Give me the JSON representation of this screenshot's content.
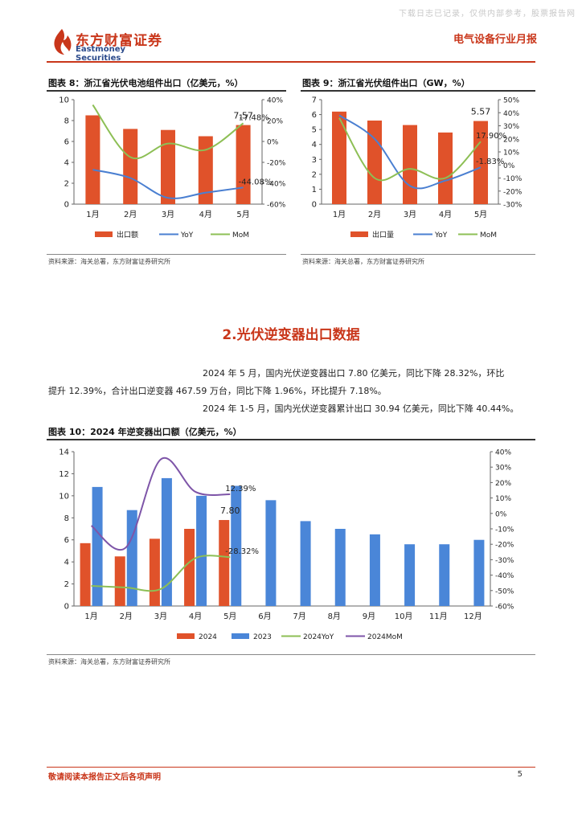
{
  "watermark": "下载日志已记录，仅供内部参考，股票报告网",
  "header": {
    "brand_cn": "东方财富证券",
    "brand_en": "Eastmoney Securities",
    "report_type": "电气设备行业月报"
  },
  "section": {
    "title": "2.光伏逆变器出口数据",
    "paragraphs": [
      "2024 年 5 月，国内光伏逆变器出口 7.80 亿美元，同比下降 28.32%，环比",
      "提升 12.39%，合计出口逆变器 467.59 万台，同比下降 1.96%，环比提升 7.18%。",
      "2024 年 1-5 月，国内光伏逆变器累计出口 30.94 亿美元，同比下降 40.44%。"
    ]
  },
  "figures": [
    {
      "title": "图表 8：浙江省光伏电池组件出口（亿美元，%）",
      "source": "资料来源：海关总署，东方财富证券研究所"
    },
    {
      "title": "图表 9：浙江省光伏组件出口（GW，%）",
      "source": "资料来源：海关总署，东方财富证券研究所"
    },
    {
      "title": "图表 10：2024 年逆变器出口额（亿美元，%）",
      "source": "资料来源：海关总署，东方财富证券研究所"
    }
  ],
  "chart_data": [
    {
      "type": "bar",
      "categories": [
        "1月",
        "2月",
        "3月",
        "4月",
        "5月"
      ],
      "ylim": [
        0,
        10
      ],
      "y_ticks": [
        "0",
        "2",
        "4",
        "6",
        "8",
        "10"
      ],
      "y2lim": [
        -60,
        40
      ],
      "y2_ticks": [
        "-60%",
        "-40%",
        "-20%",
        "0%",
        "20%",
        "40%"
      ],
      "series": [
        {
          "name": "出口额",
          "kind": "bar",
          "color": "#e0522a",
          "values": [
            8.5,
            7.2,
            7.1,
            6.5,
            7.57
          ]
        },
        {
          "name": "YoY",
          "kind": "line",
          "axis": "right",
          "color": "#4a7fd1",
          "values": [
            -27,
            -35,
            -54,
            -49,
            -44.08
          ]
        },
        {
          "name": "MoM",
          "kind": "line",
          "axis": "right",
          "color": "#8dbf55",
          "values": [
            35,
            -15,
            -2,
            -8,
            17.48
          ]
        }
      ],
      "annotations": [
        {
          "text": "7.57",
          "series": "出口额",
          "index": 4
        },
        {
          "text": "17.48%",
          "series": "MoM",
          "index": 4
        },
        {
          "text": "-44.08%",
          "series": "YoY",
          "index": 4
        }
      ],
      "legend": "bottom",
      "grid": false
    },
    {
      "type": "bar",
      "categories": [
        "1月",
        "2月",
        "3月",
        "4月",
        "5月"
      ],
      "ylim": [
        0,
        7
      ],
      "y_ticks": [
        "0",
        "1",
        "2",
        "3",
        "4",
        "5",
        "6",
        "7"
      ],
      "y2lim": [
        -30,
        50
      ],
      "y2_ticks": [
        "-30%",
        "-20%",
        "-10%",
        "0%",
        "10%",
        "20%",
        "30%",
        "40%",
        "50%"
      ],
      "series": [
        {
          "name": "出口量",
          "kind": "bar",
          "color": "#e0522a",
          "values": [
            6.2,
            5.6,
            5.3,
            4.8,
            5.57
          ]
        },
        {
          "name": "YoY",
          "kind": "line",
          "axis": "right",
          "color": "#4a7fd1",
          "values": [
            38,
            20,
            -16,
            -12,
            -1.83
          ]
        },
        {
          "name": "MoM",
          "kind": "line",
          "axis": "right",
          "color": "#8dbf55",
          "values": [
            36,
            -10,
            -3,
            -10,
            17.9
          ]
        }
      ],
      "annotations": [
        {
          "text": "5.57",
          "series": "出口量",
          "index": 4
        },
        {
          "text": "17.90%",
          "series": "MoM",
          "index": 4
        },
        {
          "text": "-1.83%",
          "series": "YoY",
          "index": 4
        }
      ],
      "legend": "bottom",
      "grid": false
    },
    {
      "type": "bar",
      "categories": [
        "1月",
        "2月",
        "3月",
        "4月",
        "5月",
        "6月",
        "7月",
        "8月",
        "9月",
        "10月",
        "11月",
        "12月"
      ],
      "ylim": [
        0,
        14
      ],
      "y_ticks": [
        "0",
        "2",
        "4",
        "6",
        "8",
        "10",
        "12",
        "14"
      ],
      "y2lim": [
        -60,
        40
      ],
      "y2_ticks": [
        "-60%",
        "-50%",
        "-40%",
        "-30%",
        "-20%",
        "-10%",
        "0%",
        "10%",
        "20%",
        "30%",
        "40%"
      ],
      "series": [
        {
          "name": "2024",
          "kind": "bar",
          "color": "#e0522a",
          "values": [
            5.7,
            4.5,
            6.1,
            7.0,
            7.8,
            null,
            null,
            null,
            null,
            null,
            null,
            null
          ]
        },
        {
          "name": "2023",
          "kind": "bar",
          "color": "#4a86d8",
          "values": [
            10.8,
            8.7,
            11.6,
            10.0,
            10.9,
            9.6,
            7.7,
            7.0,
            6.5,
            5.6,
            5.6,
            6.0
          ]
        },
        {
          "name": "2024YoY",
          "kind": "line",
          "axis": "right",
          "color": "#8dbf55",
          "values": [
            -47,
            -48,
            -49,
            -29,
            -28.32,
            null,
            null,
            null,
            null,
            null,
            null,
            null
          ]
        },
        {
          "name": "2024MoM",
          "kind": "line",
          "axis": "right",
          "color": "#7e55a8",
          "values": [
            -8,
            -22,
            35,
            14,
            12.39,
            null,
            null,
            null,
            null,
            null,
            null,
            null
          ]
        }
      ],
      "annotations": [
        {
          "text": "7.80",
          "series": "2024",
          "index": 4
        },
        {
          "text": "12.39%",
          "series": "2024MoM",
          "index": 4
        },
        {
          "text": "-28.32%",
          "series": "2024YoY",
          "index": 4
        }
      ],
      "legend": "bottom",
      "grid": false
    }
  ],
  "footer": {
    "disclaimer": "敬请阅读本报告正文后各项声明",
    "page": "5"
  }
}
